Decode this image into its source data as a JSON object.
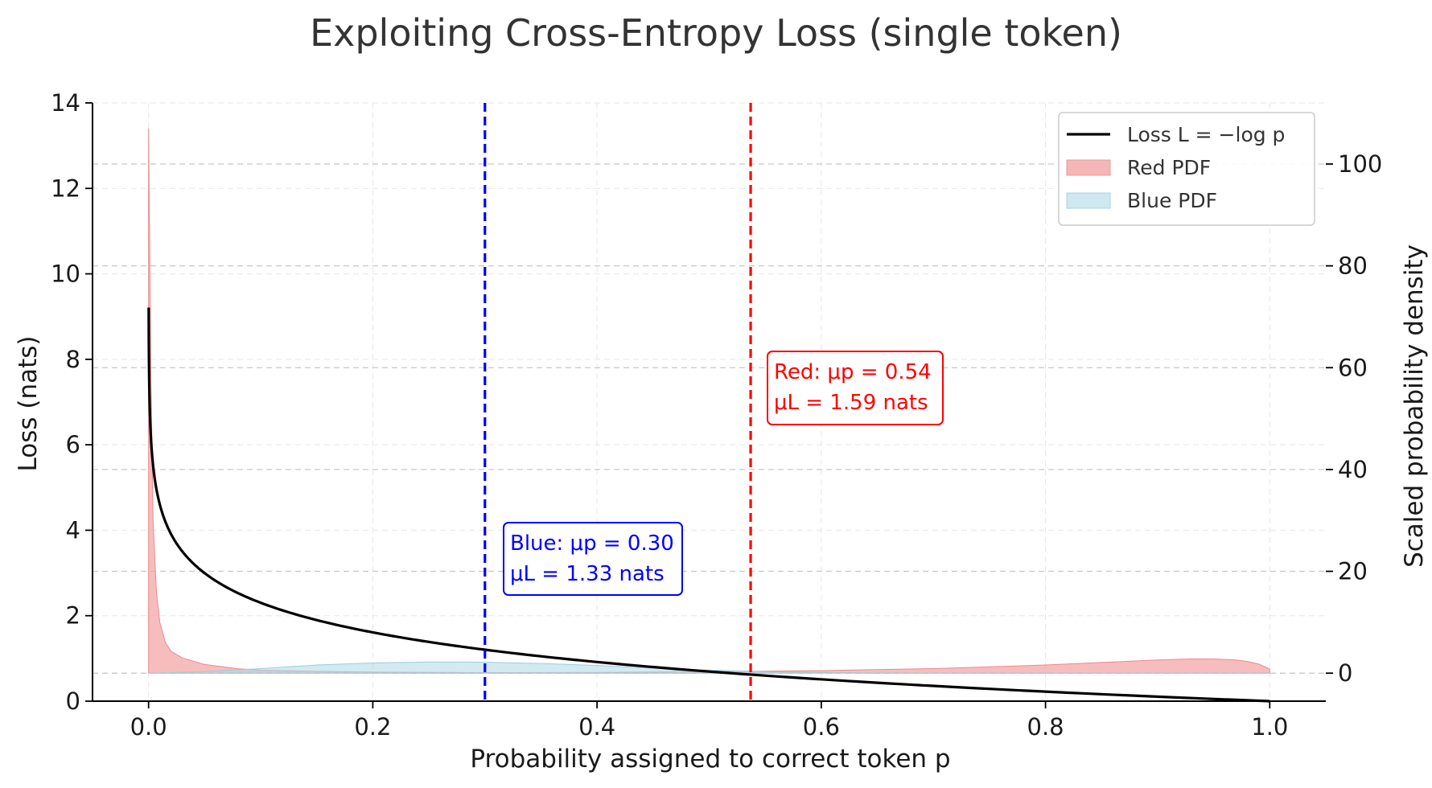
{
  "chart_data": {
    "type": "line",
    "title": "Exploiting Cross-Entropy Loss (single token)",
    "xlabel": "Probability assigned to correct token p",
    "ylabel": "Loss (nats)",
    "y2label": "Scaled probability density",
    "xlim": [
      -0.05,
      1.05
    ],
    "ylim": [
      0,
      14
    ],
    "y2lim": [
      -5.5,
      112
    ],
    "x_ticks": [
      0.0,
      0.2,
      0.4,
      0.6,
      0.8,
      1.0
    ],
    "x_tick_labels": [
      "0.0",
      "0.2",
      "0.4",
      "0.6",
      "0.8",
      "1.0"
    ],
    "y_ticks": [
      0,
      2,
      4,
      6,
      8,
      10,
      12,
      14
    ],
    "y_tick_labels": [
      "0",
      "2",
      "4",
      "6",
      "8",
      "10",
      "12",
      "14"
    ],
    "y2_ticks": [
      0,
      20,
      40,
      60,
      80,
      100
    ],
    "y2_tick_labels": [
      "0",
      "20",
      "40",
      "60",
      "80",
      "100"
    ],
    "grid": true,
    "legend_position": "top-right",
    "series": [
      {
        "name": "Loss L = −log p",
        "kind": "line",
        "axis": "left",
        "color": "#000000",
        "function": "-ln(p)",
        "x_range": [
          0.0001,
          1.0
        ]
      },
      {
        "name": "Red PDF",
        "kind": "area",
        "axis": "right",
        "color": "#f4a3a3",
        "x": [
          0.0,
          0.002,
          0.004,
          0.007,
          0.01,
          0.015,
          0.02,
          0.03,
          0.05,
          0.08,
          0.1,
          0.15,
          0.2,
          0.3,
          0.4,
          0.5,
          0.6,
          0.7,
          0.8,
          0.85,
          0.9,
          0.93,
          0.95,
          0.97,
          0.98,
          0.99,
          1.0
        ],
        "values": [
          107,
          60,
          30,
          16,
          10,
          6,
          4.3,
          3.0,
          1.7,
          0.85,
          0.6,
          0.35,
          0.2,
          0.1,
          0.15,
          0.3,
          0.5,
          0.9,
          1.6,
          2.1,
          2.6,
          2.8,
          2.8,
          2.6,
          2.3,
          1.8,
          0.8
        ]
      },
      {
        "name": "Blue PDF",
        "kind": "area",
        "axis": "right",
        "color": "#add8e6",
        "x": [
          0.0,
          0.05,
          0.1,
          0.15,
          0.2,
          0.25,
          0.3,
          0.35,
          0.4,
          0.45,
          0.5,
          0.55,
          0.6,
          0.65,
          0.7,
          0.8,
          1.0
        ],
        "values": [
          0,
          0.3,
          0.9,
          1.6,
          2.0,
          2.2,
          2.15,
          1.9,
          1.5,
          1.0,
          0.6,
          0.3,
          0.12,
          0.05,
          0.02,
          0,
          0
        ]
      }
    ],
    "vlines": [
      {
        "name": "blue-mean-line",
        "x": 0.3,
        "color": "#0000ff",
        "style": "dashed"
      },
      {
        "name": "red-mean-line",
        "x": 0.537,
        "color": "#ff0000",
        "style": "dashed"
      }
    ],
    "legend": [
      {
        "label": "Loss L = −log p",
        "kind": "line",
        "color": "#000000"
      },
      {
        "label": "Red PDF",
        "kind": "patch",
        "color": "#f4b6b6"
      },
      {
        "label": "Blue PDF",
        "kind": "patch",
        "color": "#cde8f0"
      }
    ],
    "annotations": [
      {
        "name": "blue-annotation",
        "color": "#0000ff",
        "lines": [
          "Blue: μp = 0.30",
          "μL = 1.33 nats"
        ]
      },
      {
        "name": "red-annotation",
        "color": "#ff0000",
        "lines": [
          "Red: μp = 0.54",
          "μL = 1.59 nats"
        ]
      }
    ]
  }
}
